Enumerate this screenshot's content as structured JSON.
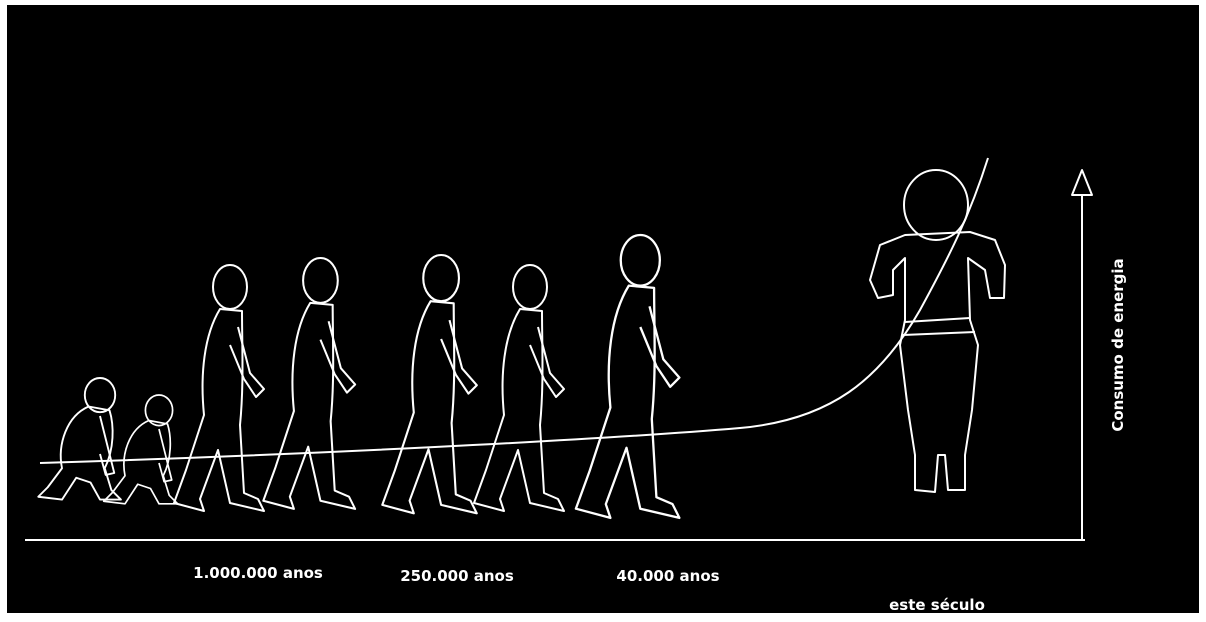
{
  "axis_label": "Consumo de energia",
  "time_labels": [
    "1.000.000 anos",
    "250.000 anos",
    "40.000 anos",
    "este século"
  ]
}
